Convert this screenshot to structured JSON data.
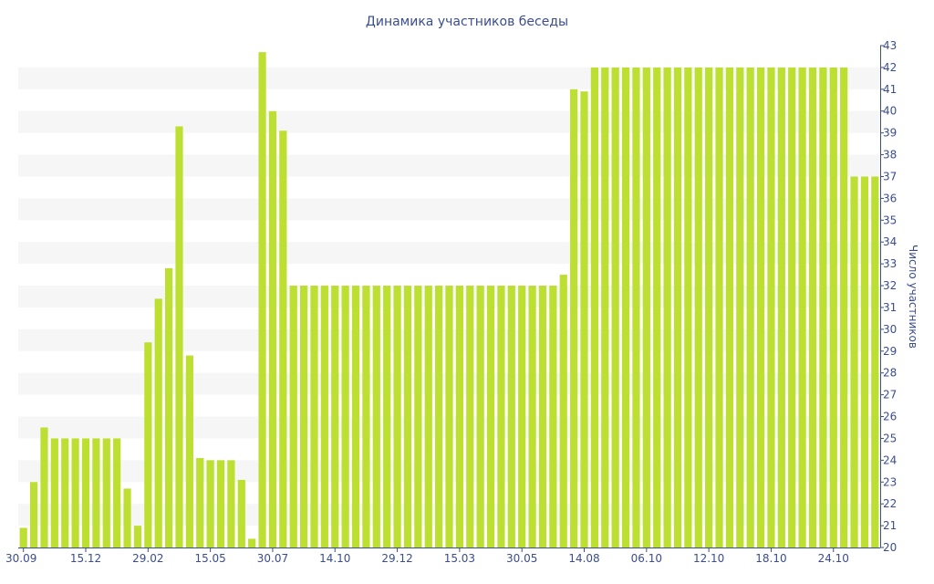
{
  "chart_data": {
    "type": "bar",
    "title": "Динамика участников беседы",
    "xlabel": "",
    "ylabel": "Число участников",
    "ylim": [
      20,
      43
    ],
    "yticks": [
      20,
      21,
      22,
      23,
      24,
      25,
      26,
      27,
      28,
      29,
      30,
      31,
      32,
      33,
      34,
      35,
      36,
      37,
      38,
      39,
      40,
      41,
      42,
      43
    ],
    "y_axis_position": "right",
    "grid": "horizontal-bands",
    "legend": "none",
    "xtick_labels": [
      "30.09",
      "15.12",
      "29.02",
      "15.05",
      "30.07",
      "14.10",
      "29.12",
      "15.03",
      "30.05",
      "14.08",
      "06.10",
      "12.10",
      "18.10",
      "24.10"
    ],
    "xtick_bar_index": [
      0,
      6,
      12,
      18,
      24,
      30,
      36,
      42,
      48,
      54,
      60,
      66,
      72,
      78
    ],
    "values": [
      20.9,
      23.0,
      25.5,
      25.0,
      25.0,
      25.0,
      25.0,
      25.0,
      25.0,
      25.0,
      22.7,
      21.0,
      29.4,
      31.4,
      32.8,
      39.3,
      28.8,
      24.1,
      24.0,
      24.0,
      24.0,
      23.1,
      20.4,
      42.7,
      40.0,
      39.1,
      32.0,
      32.0,
      32.0,
      32.0,
      32.0,
      32.0,
      32.0,
      32.0,
      32.0,
      32.0,
      32.0,
      32.0,
      32.0,
      32.0,
      32.0,
      32.0,
      32.0,
      32.0,
      32.0,
      32.0,
      32.0,
      32.0,
      32.0,
      32.0,
      32.0,
      32.0,
      32.5,
      41.0,
      40.9,
      42.0,
      42.0,
      42.0,
      42.0,
      42.0,
      42.0,
      42.0,
      42.0,
      42.0,
      42.0,
      42.0,
      42.0,
      42.0,
      42.0,
      42.0,
      42.0,
      42.0,
      42.0,
      42.0,
      42.0,
      42.0,
      42.0,
      42.0,
      42.0,
      42.0,
      37.0,
      37.0,
      37.0
    ],
    "colors": {
      "bar": "#bddf32",
      "text": "#3a4d8f",
      "band": "#f6f6f6",
      "axis": "#3a4d8f"
    }
  }
}
